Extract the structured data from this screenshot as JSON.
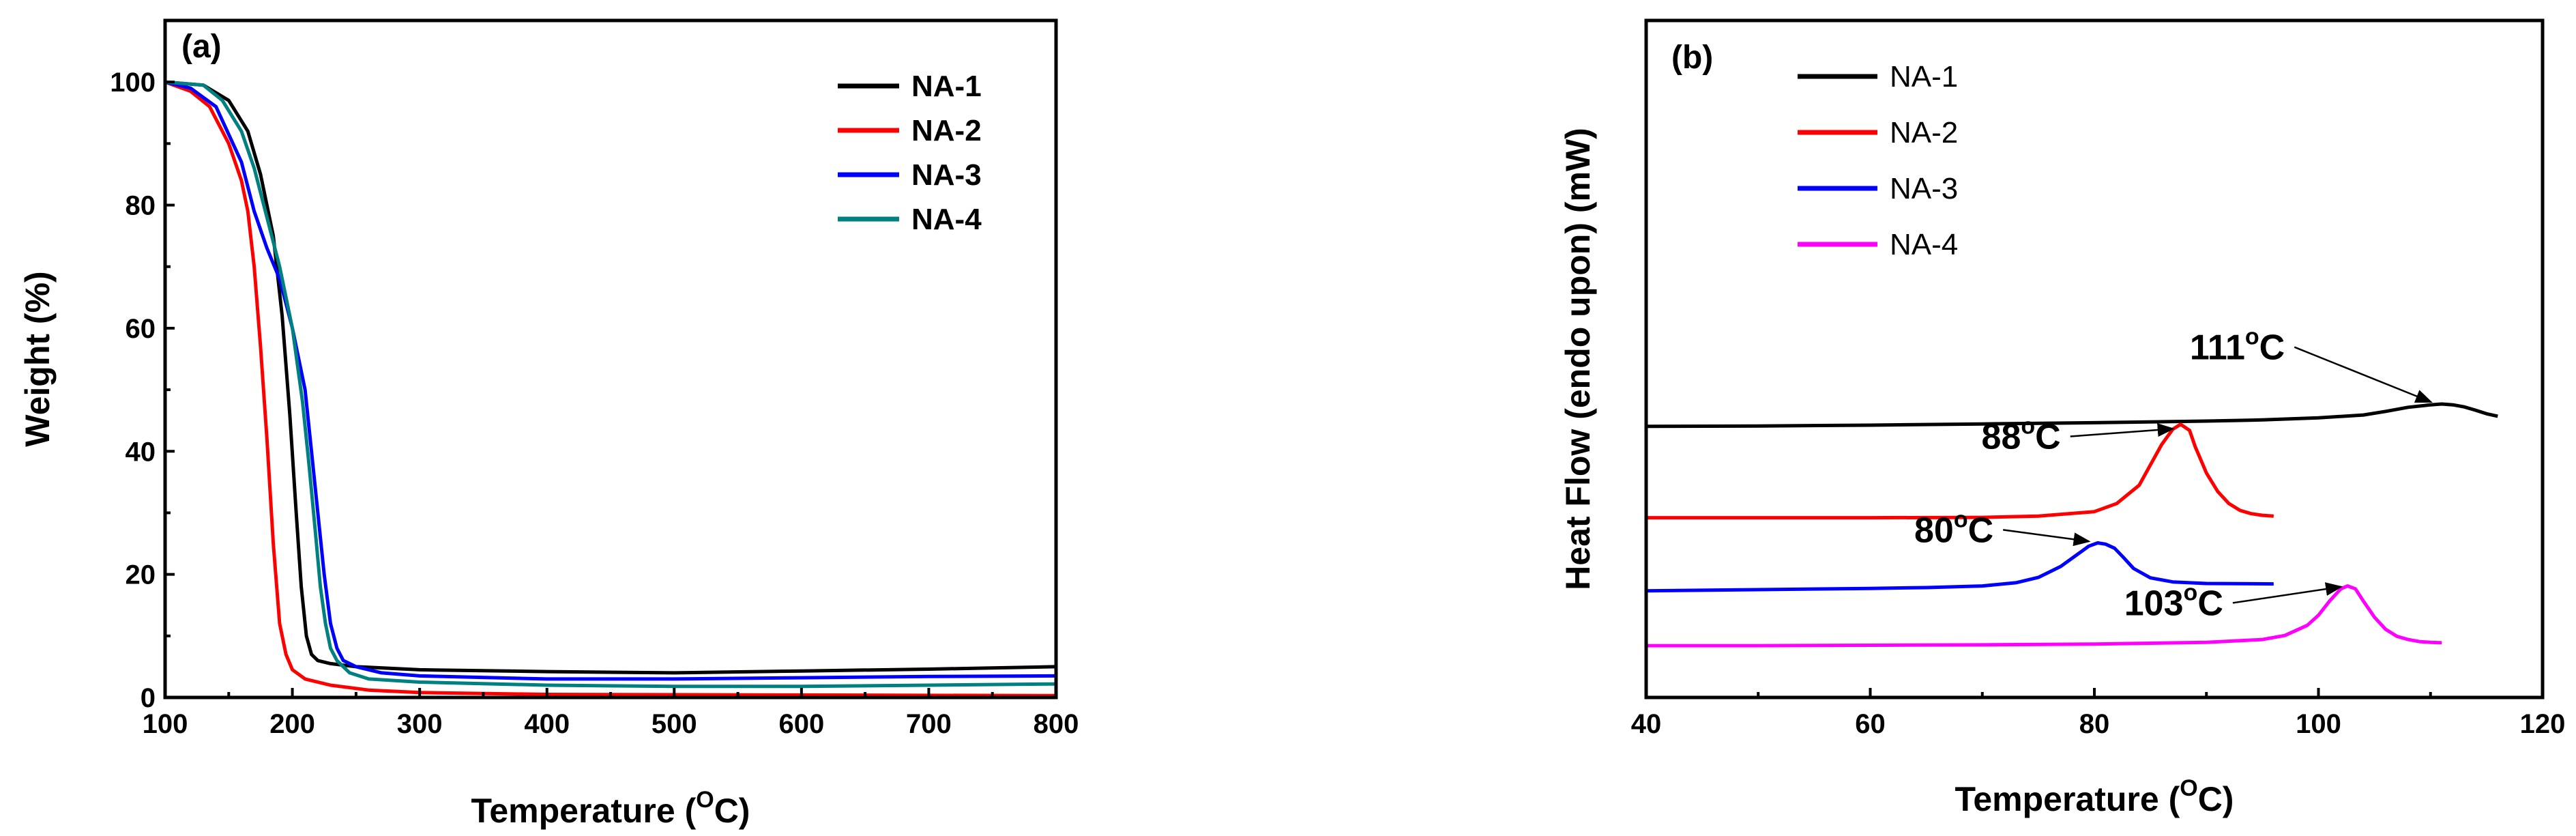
{
  "colors": {
    "NA-1": "#000000",
    "NA-2": "#ff0000",
    "NA-3": "#0000ff",
    "NA-4_tga": "#008080",
    "NA-4_dsc": "#ff00ff",
    "axis": "#000000",
    "background": "#ffffff"
  },
  "chart_data": [
    {
      "type": "line",
      "panel_label": "(a)",
      "xlabel": {
        "main": "Temperature (",
        "sup": "O",
        "tail": "C)"
      },
      "ylabel": "Weight (%)",
      "xlim": [
        100,
        800
      ],
      "ylim": [
        0,
        110
      ],
      "xticks": [
        100,
        200,
        300,
        400,
        500,
        600,
        700,
        800
      ],
      "yticks": [
        0,
        20,
        40,
        60,
        80,
        100
      ],
      "legend_position": "top-right",
      "series": [
        {
          "name": "NA-1",
          "color_key": "NA-1",
          "x": [
            100,
            130,
            150,
            165,
            175,
            185,
            192,
            198,
            203,
            207,
            211,
            215,
            220,
            230,
            250,
            300,
            400,
            500,
            600,
            700,
            800
          ],
          "y": [
            100,
            99.5,
            97,
            92,
            85,
            75,
            62,
            46,
            30,
            18,
            10,
            7,
            6,
            5.5,
            5,
            4.5,
            4.2,
            4,
            4.3,
            4.6,
            5
          ]
        },
        {
          "name": "NA-2",
          "color_key": "NA-2",
          "x": [
            100,
            120,
            135,
            150,
            160,
            165,
            170,
            175,
            180,
            185,
            190,
            195,
            200,
            210,
            230,
            260,
            300,
            400,
            600,
            800
          ],
          "y": [
            100,
            98.5,
            96,
            90,
            84,
            79,
            70,
            57,
            42,
            25,
            12,
            7,
            4.5,
            3,
            2,
            1.2,
            0.8,
            0.5,
            0.4,
            0.3
          ]
        },
        {
          "name": "NA-3",
          "color_key": "NA-3",
          "x": [
            100,
            120,
            140,
            160,
            170,
            180,
            190,
            200,
            210,
            215,
            220,
            225,
            230,
            235,
            240,
            250,
            270,
            300,
            400,
            500,
            600,
            700,
            800
          ],
          "y": [
            100,
            99,
            96,
            87,
            79,
            73,
            68,
            60,
            50,
            40,
            30,
            20,
            12,
            8,
            6,
            5,
            4,
            3.5,
            3,
            3,
            3.2,
            3.4,
            3.5
          ]
        },
        {
          "name": "NA-4",
          "color_key": "NA-4_tga",
          "x": [
            100,
            130,
            145,
            160,
            170,
            180,
            190,
            200,
            208,
            213,
            218,
            222,
            226,
            230,
            235,
            245,
            260,
            300,
            400,
            500,
            600,
            700,
            800
          ],
          "y": [
            100,
            99.5,
            97,
            92,
            86,
            78,
            70,
            60,
            48,
            38,
            27,
            18,
            12,
            8,
            6,
            4,
            3,
            2.5,
            2,
            1.8,
            1.8,
            2,
            2.2
          ]
        }
      ]
    },
    {
      "type": "line",
      "panel_label": "(b)",
      "xlabel": {
        "main": "Temperature (",
        "sup": "O",
        "tail": "C)"
      },
      "ylabel": "Heat Flow (endo upon) (mW)",
      "xlim": [
        40,
        120
      ],
      "ylim": [
        0,
        100
      ],
      "xticks": [
        40,
        60,
        80,
        100,
        120
      ],
      "y_tick_labels": false,
      "legend_position": "top-left",
      "series": [
        {
          "name": "NA-1",
          "color_key": "NA-1",
          "x": [
            40,
            50,
            60,
            70,
            80,
            90,
            95,
            100,
            104,
            106,
            108,
            110,
            111,
            112,
            113,
            114,
            115,
            116
          ],
          "y": [
            55.5,
            55.6,
            55.8,
            56.1,
            56.4,
            56.8,
            57.1,
            57.6,
            58.3,
            59.2,
            60.2,
            60.8,
            61,
            60.8,
            60.3,
            59.5,
            58.6,
            58
          ]
        },
        {
          "name": "NA-2",
          "color_key": "NA-2",
          "x": [
            40,
            50,
            60,
            70,
            75,
            80,
            82,
            84,
            85,
            86,
            87,
            87.7,
            88.5,
            89,
            90,
            91,
            92,
            93,
            94,
            95,
            96
          ],
          "y": [
            33,
            33,
            33,
            33.1,
            33.4,
            34.5,
            36.5,
            41,
            46,
            51,
            54.8,
            56,
            54.5,
            50.5,
            44,
            39.5,
            36.5,
            34.8,
            34,
            33.6,
            33.4
          ]
        },
        {
          "name": "NA-3",
          "color_key": "NA-3",
          "x": [
            40,
            50,
            60,
            65,
            70,
            73,
            75,
            77,
            78.5,
            79.5,
            80.3,
            81,
            81.8,
            82.5,
            83.5,
            85,
            87,
            90,
            96
          ],
          "y": [
            15,
            15.3,
            15.6,
            15.8,
            16.2,
            17,
            18.3,
            21,
            24,
            26,
            26.8,
            26.5,
            25.5,
            23.5,
            20.5,
            18.2,
            17.2,
            16.8,
            16.7
          ]
        },
        {
          "name": "NA-4",
          "color_key": "NA-4_dsc",
          "x": [
            40,
            50,
            60,
            70,
            80,
            90,
            95,
            97,
            99,
            100,
            101,
            102,
            102.6,
            103.3,
            104,
            105,
            106,
            107,
            108,
            109,
            110,
            111
          ],
          "y": [
            1.5,
            1.5,
            1.6,
            1.7,
            1.9,
            2.3,
            3,
            4,
            6.5,
            9,
            12.5,
            15.5,
            16.2,
            15.5,
            12.5,
            8.5,
            5.5,
            3.8,
            3,
            2.5,
            2.3,
            2.2
          ]
        }
      ],
      "annotations": [
        {
          "value": "111",
          "sup": "o",
          "unit": "C",
          "point_x": 110.5,
          "point_y": 61,
          "label_x": 97,
          "label_y": 72
        },
        {
          "value": "88",
          "sup": "o",
          "unit": "C",
          "point_x": 87.5,
          "point_y": 55,
          "label_x": 77,
          "label_y": 50
        },
        {
          "value": "80",
          "sup": "o",
          "unit": "C",
          "point_x": 80,
          "point_y": 27,
          "label_x": 71,
          "label_y": 27
        },
        {
          "value": "103",
          "sup": "o",
          "unit": "C",
          "point_x": 102.5,
          "point_y": 16.2,
          "label_x": 91.5,
          "label_y": 9
        }
      ]
    }
  ]
}
